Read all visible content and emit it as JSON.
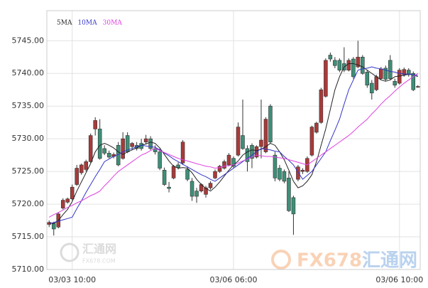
{
  "chart_data": {
    "type": "candlestick",
    "categories": [
      null,
      null,
      null,
      null,
      null,
      "03/03 10:00",
      null,
      null,
      null,
      null,
      null,
      null,
      null,
      null,
      null,
      null,
      null,
      null,
      null,
      null,
      null,
      null,
      null,
      null,
      null,
      null,
      null,
      null,
      null,
      null,
      null,
      null,
      null,
      null,
      null,
      null,
      null,
      null,
      null,
      null,
      "03/06 06:00",
      null,
      null,
      null,
      null,
      null,
      null,
      null,
      null,
      null,
      null,
      null,
      null,
      null,
      null,
      null,
      null,
      null,
      null,
      null,
      null,
      null,
      null,
      null,
      null,
      null,
      null,
      null,
      null,
      null,
      null,
      null,
      null,
      null,
      null,
      null,
      "03/06 10:00",
      null,
      null,
      null,
      null
    ],
    "open": [
      5716.9,
      5717,
      5716.5,
      5719.4,
      5720.3,
      5720.8,
      5723,
      5724.8,
      5725.3,
      5726.5,
      5731.5,
      5731.5,
      5728.5,
      5727.8,
      5727.3,
      5729,
      5727,
      5730.5,
      5728.8,
      5729,
      5729.3,
      5729.5,
      5730,
      5728.5,
      5728,
      5725.2,
      5722.6,
      5724,
      5726,
      5726.3,
      5725.3,
      5723.5,
      5722,
      5722,
      5721.5,
      5722.5,
      5724,
      5725,
      5725.5,
      5726,
      5727,
      5727.5,
      5730.5,
      5728.5,
      5729,
      5727.2,
      5728.8,
      5728,
      5735,
      5727.5,
      5725.5,
      5725,
      5724,
      5721,
      5723.8,
      5725,
      5725,
      5727.5,
      5731,
      5732.5,
      5736.5,
      5742.8,
      5742,
      5742,
      5741.5,
      5740.5,
      5742.2,
      5741,
      5742.5,
      5740.2,
      5738.5,
      5737.5,
      5739.2,
      5740.8,
      5742,
      5738.8,
      5738.5,
      5739.8,
      5740.5,
      5740,
      5738
    ],
    "high": [
      5717.5,
      5717.3,
      5718.8,
      5720.9,
      5721,
      5723,
      5726,
      5726.2,
      5726.8,
      5730.8,
      5733.3,
      5733,
      5729,
      5728.2,
      5727.9,
      5729.5,
      5731,
      5731,
      5729.5,
      5729.5,
      5730,
      5730.6,
      5730.4,
      5729,
      5728.5,
      5725.6,
      5723.4,
      5726,
      5726.4,
      5729.8,
      5725.8,
      5724,
      5722.5,
      5723.2,
      5722.8,
      5723.5,
      5725.3,
      5726,
      5726.8,
      5727.8,
      5727.3,
      5732.5,
      5736,
      5729,
      5729.3,
      5729,
      5736,
      5733.3,
      5735.3,
      5728,
      5726,
      5725.3,
      5725,
      5721.3,
      5726,
      5725.5,
      5727.3,
      5732,
      5732.6,
      5737.8,
      5742.3,
      5743.2,
      5742.5,
      5742.3,
      5744,
      5742.3,
      5742.5,
      5745,
      5742.8,
      5740.5,
      5739,
      5739.8,
      5741,
      5741.2,
      5742.8,
      5739.2,
      5740.8,
      5740.9,
      5740.8,
      5740.3,
      5738.2
    ],
    "low": [
      5716.5,
      5715.2,
      5716.3,
      5719.2,
      5720.1,
      5720.6,
      5722.8,
      5724.5,
      5725,
      5726.3,
      5730.5,
      5726.8,
      5727.5,
      5727,
      5727,
      5725.8,
      5726.8,
      5727.8,
      5728.3,
      5728.2,
      5728.2,
      5729.2,
      5728.3,
      5727.6,
      5725.2,
      5722.8,
      5721.8,
      5723.8,
      5725.3,
      5726,
      5723.5,
      5720.5,
      5720.2,
      5721.8,
      5721,
      5722.2,
      5723.8,
      5724.8,
      5725.3,
      5725.8,
      5725.5,
      5727.3,
      5728.3,
      5725,
      5725.5,
      5727,
      5727,
      5727.8,
      5729.3,
      5723.5,
      5723.5,
      5723.2,
      5718.8,
      5715.3,
      5723.5,
      5724.6,
      5724.8,
      5727.3,
      5730.8,
      5732.3,
      5736.3,
      5741.8,
      5740.8,
      5740.2,
      5740.2,
      5740.3,
      5739.2,
      5740.8,
      5739.8,
      5737.8,
      5736,
      5737.3,
      5739,
      5738.8,
      5739,
      5737.8,
      5738.3,
      5739.5,
      5739.5,
      5737.3,
      5737.8
    ],
    "close": [
      5717.2,
      5716.2,
      5718.5,
      5720.6,
      5720.8,
      5722.6,
      5725.5,
      5726,
      5726.5,
      5730.5,
      5732.8,
      5727,
      5727.8,
      5727.2,
      5727.6,
      5726,
      5730,
      5728,
      5729.3,
      5728.5,
      5728.5,
      5730,
      5728.5,
      5728,
      5725.5,
      5723,
      5722.4,
      5725.8,
      5725.6,
      5729.5,
      5723.8,
      5721.2,
      5721.2,
      5723,
      5722.5,
      5723.2,
      5725,
      5725.8,
      5726.5,
      5727.5,
      5725.8,
      5731.8,
      5728.5,
      5726.5,
      5727,
      5728.8,
      5729.8,
      5733,
      5729.5,
      5724,
      5723.8,
      5723.5,
      5719,
      5718.5,
      5725.7,
      5725.2,
      5727,
      5731.8,
      5732.4,
      5737.5,
      5742,
      5742.2,
      5741.2,
      5740.5,
      5740.5,
      5742,
      5739.5,
      5742.5,
      5740,
      5738.2,
      5737,
      5739.5,
      5740.7,
      5739.1,
      5739.2,
      5738.2,
      5740.5,
      5740.6,
      5739.8,
      5737.5,
      5738
    ],
    "up_color": "#a83a3a",
    "down_color": "#3e8f78",
    "series": [
      {
        "name": "5MA",
        "color": "#222222",
        "values": [
          5717.2,
          5717,
          5717.5,
          5718.4,
          5719.2,
          5720.4,
          5722,
          5723.4,
          5724.8,
          5726.2,
          5728,
          5729,
          5729.3,
          5729,
          5728.6,
          5728,
          5727.6,
          5728,
          5728.3,
          5728.6,
          5729,
          5729.2,
          5729.5,
          5729.3,
          5728.6,
          5727.6,
          5726.6,
          5725.8,
          5725.5,
          5725.6,
          5725.5,
          5724.8,
          5723.8,
          5723,
          5722.4,
          5722,
          5722.6,
          5723.4,
          5724.3,
          5725.2,
          5726,
          5726.6,
          5727.5,
          5728,
          5728.3,
          5728.2,
          5728.4,
          5728.8,
          5729.3,
          5729,
          5728,
          5726.8,
          5725.2,
          5723.5,
          5722.5,
          5722.8,
          5723.5,
          5724.5,
          5726.5,
          5729,
          5731.5,
          5734.5,
          5737.5,
          5739.5,
          5741,
          5741.5,
          5741.5,
          5741.3,
          5741,
          5740.5,
          5740,
          5739.5,
          5739,
          5738.8,
          5739,
          5739.5,
          5739.6,
          5739.7,
          5739.9,
          5739.8,
          5739.5
        ]
      },
      {
        "name": "10MA",
        "color": "#3535c8",
        "values": [
          5717,
          5717.2,
          5717.4,
          5717.6,
          5717.8,
          5718,
          5719.3,
          5720.5,
          5721.8,
          5723,
          5724.2,
          5725.3,
          5726.5,
          5726.9,
          5727.3,
          5727.6,
          5728,
          5728.3,
          5728.5,
          5728.8,
          5729,
          5728.9,
          5728.8,
          5728.7,
          5728.3,
          5727.8,
          5727.4,
          5726.9,
          5726.5,
          5726.1,
          5725.7,
          5725.3,
          5724.9,
          5724.5,
          5724.2,
          5723.8,
          5723.5,
          5724,
          5724.5,
          5725,
          5725.5,
          5726,
          5726.5,
          5727,
          5727.5,
          5728,
          5728.5,
          5728.4,
          5728.3,
          5728.1,
          5728,
          5727.3,
          5726.7,
          5726,
          5724.9,
          5723.8,
          5724.4,
          5725,
          5726,
          5727,
          5728,
          5729.7,
          5731.3,
          5733,
          5735.3,
          5737.5,
          5739,
          5740.5,
          5740.7,
          5740.8,
          5741,
          5740.8,
          5740.7,
          5740.5,
          5740.3,
          5740.2,
          5740,
          5739.9,
          5739.9,
          5739.8,
          5739.7
        ]
      },
      {
        "name": "30MA",
        "color": "#e040e0",
        "values": [
          5718,
          5718.4,
          5718.7,
          5719.1,
          5719.5,
          5719.8,
          5720.2,
          5720.5,
          5720.9,
          5721.3,
          5721.6,
          5722,
          5722.8,
          5723.5,
          5724.3,
          5725,
          5725.5,
          5726,
          5726.5,
          5727,
          5727.5,
          5727.8,
          5728.2,
          5728.5,
          5728.2,
          5727.9,
          5727.6,
          5727.3,
          5727,
          5726.8,
          5726.6,
          5726.4,
          5726.2,
          5726,
          5725.8,
          5725.7,
          5725.5,
          5725.6,
          5725.8,
          5725.9,
          5726,
          5726.3,
          5726.6,
          5726.9,
          5727.2,
          5727.5,
          5727.4,
          5727.3,
          5727.3,
          5727.2,
          5727.1,
          5727,
          5726.8,
          5726.6,
          5726.4,
          5726.2,
          5726,
          5726.5,
          5727,
          5727.5,
          5728,
          5728.5,
          5729,
          5729.5,
          5730,
          5730.5,
          5731.1,
          5731.8,
          5732.4,
          5733,
          5733.8,
          5734.5,
          5735.3,
          5736,
          5736.6,
          5737.3,
          5737.9,
          5738.5,
          5739,
          5739.5,
          5740
        ]
      }
    ],
    "ylim": [
      5710,
      5749.6
    ],
    "yticks": [
      {
        "value": 5710,
        "label": "5710.00"
      },
      {
        "value": 5715,
        "label": "5715.00"
      },
      {
        "value": 5720,
        "label": "5720.00"
      },
      {
        "value": 5725,
        "label": "5725.00"
      },
      {
        "value": 5730,
        "label": "5730.00"
      },
      {
        "value": 5735,
        "label": "5735.00"
      },
      {
        "value": 5740,
        "label": "5740.00"
      },
      {
        "value": 5745,
        "label": "5745.00"
      }
    ],
    "grid": true,
    "watermark_left": {
      "name": "汇通网",
      "site": "FX678.COM"
    },
    "watermark_right": {
      "brand": "FX678",
      "name": "汇通网"
    }
  }
}
